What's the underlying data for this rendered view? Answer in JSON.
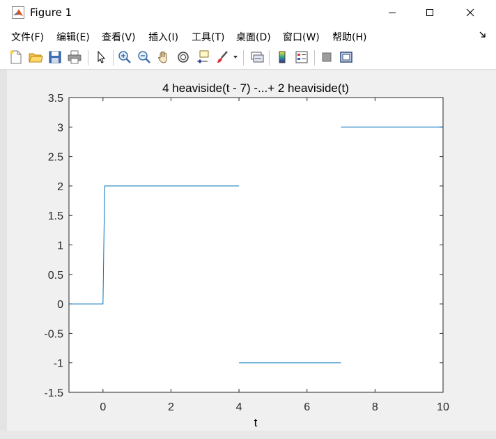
{
  "window": {
    "title": "Figure 1"
  },
  "menu": [
    {
      "label": "文件(F)"
    },
    {
      "label": "编辑(E)"
    },
    {
      "label": "查看(V)"
    },
    {
      "label": "插入(I)"
    },
    {
      "label": "工具(T)"
    },
    {
      "label": "桌面(D)"
    },
    {
      "label": "窗口(W)"
    },
    {
      "label": "帮助(H)"
    }
  ],
  "toolbar": {
    "buttons": [
      "new-figure-icon",
      "open-icon",
      "save-icon",
      "print-icon",
      "select-pointer-icon",
      "zoom-in-icon",
      "zoom-out-icon",
      "pan-hand-icon",
      "rotate-3d-icon",
      "data-cursor-icon",
      "brush-icon",
      "brush-dropdown-icon",
      "link-plot-icon",
      "colorbar-icon",
      "legend-icon",
      "hide-plot-tools-icon",
      "show-plot-tools-icon"
    ]
  },
  "colors": {
    "line": "#0072bd",
    "axes": "#262626",
    "figure_bg": "#f0f0f0"
  },
  "chart_data": {
    "type": "line",
    "title": "4 heaviside(t - 7) -...+ 2 heaviside(t)",
    "xlabel": "t",
    "ylabel": "",
    "xlim": [
      -1,
      10
    ],
    "ylim": [
      -1.5,
      3.5
    ],
    "xticks": [
      0,
      2,
      4,
      6,
      8,
      10
    ],
    "yticks": [
      -1.5,
      -1,
      -0.5,
      0,
      0.5,
      1,
      1.5,
      2,
      2.5,
      3,
      3.5
    ],
    "xtick_labels": [
      "0",
      "2",
      "4",
      "6",
      "8",
      "10"
    ],
    "ytick_labels": [
      "-1.5",
      "-1",
      "-0.5",
      "0",
      "0.5",
      "1",
      "1.5",
      "2",
      "2.5",
      "3",
      "3.5"
    ],
    "grid": false,
    "series": [
      {
        "segments": [
          [
            [
              -1,
              0
            ],
            [
              0,
              0
            ],
            [
              0.05,
              2
            ],
            [
              4,
              2
            ]
          ],
          [
            [
              4,
              -1
            ],
            [
              7,
              -1
            ]
          ],
          [
            [
              7,
              3
            ],
            [
              10,
              3
            ]
          ]
        ]
      }
    ]
  }
}
